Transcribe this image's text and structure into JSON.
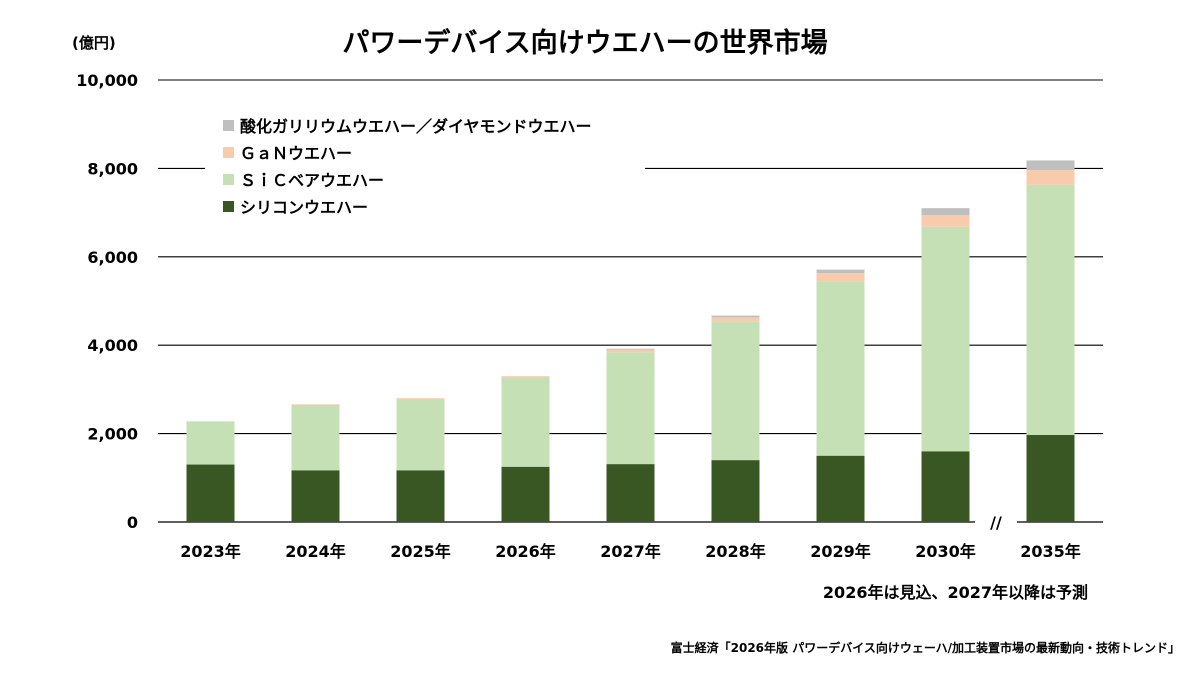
{
  "chart_data": {
    "type": "bar",
    "stacked": true,
    "title": "パワーデバイス向けウエハーの世界市場",
    "unit_label": "(億円)",
    "categories": [
      "2023年",
      "2024年",
      "2025年",
      "2026年",
      "2027年",
      "2028年",
      "2029年",
      "2030年",
      "2035年"
    ],
    "y_ticks": [
      "0",
      "2,000",
      "4,000",
      "6,000",
      "8,000",
      "10,000"
    ],
    "ylim": [
      0,
      10000
    ],
    "grid": true,
    "axis_break_label": "//",
    "legend_position": "top-left",
    "series": [
      {
        "name": "シリコンウエハー",
        "color": "#385723",
        "values": [
          1300,
          1170,
          1170,
          1250,
          1310,
          1400,
          1500,
          1600,
          1970
        ]
      },
      {
        "name": "ＳｉＣベアウエハー",
        "color": "#c5e0b4",
        "values": [
          970,
          1480,
          1600,
          2020,
          2530,
          3140,
          3950,
          5080,
          5660
        ]
      },
      {
        "name": "ＧａＮウエハー",
        "color": "#f8cbad",
        "values": [
          10,
          15,
          30,
          30,
          60,
          90,
          180,
          260,
          330
        ]
      },
      {
        "name": "酸化ガリリウムウエハー／ダイヤモンドウエハー",
        "color": "#bfbfbf",
        "values": [
          0,
          0,
          0,
          0,
          20,
          40,
          80,
          160,
          220
        ]
      }
    ],
    "note": "2026年は見込、2027年以降は予測",
    "source": "富士経済「2026年版 パワーデバイス向けウェーハ/加工装置市場の最新動向・技術トレンド」"
  }
}
